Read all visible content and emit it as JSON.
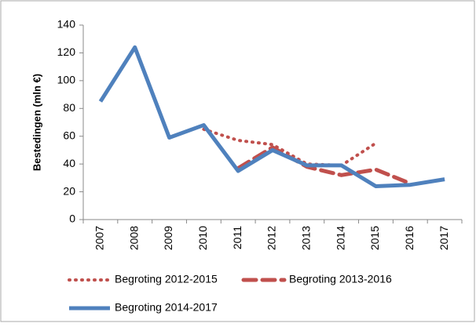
{
  "chart_data": {
    "type": "line",
    "y_label": "Bestedingen (mln €)",
    "categories": [
      "2007",
      "2008",
      "2009",
      "2010",
      "2011",
      "2012",
      "2013",
      "2014",
      "2015",
      "2016",
      "2017"
    ],
    "series": [
      {
        "name": "Begroting 2012-2015",
        "color": "#c0504d",
        "style": "dotted",
        "values": [
          null,
          null,
          null,
          65,
          57,
          54,
          40,
          39,
          55,
          null,
          null
        ]
      },
      {
        "name": "Begroting 2013-2016",
        "color": "#c0504d",
        "style": "dashed",
        "values": [
          null,
          null,
          null,
          null,
          37,
          52,
          38,
          32,
          36,
          26,
          null
        ]
      },
      {
        "name": "Begroting 2014-2017",
        "color": "#4f81bd",
        "style": "solid",
        "values": [
          85,
          124,
          59,
          68,
          35,
          50,
          39,
          39,
          24,
          25,
          29
        ]
      }
    ],
    "ylim": [
      0,
      140
    ],
    "yticks": [
      0,
      20,
      40,
      60,
      80,
      100,
      120,
      140
    ],
    "grid": false
  }
}
